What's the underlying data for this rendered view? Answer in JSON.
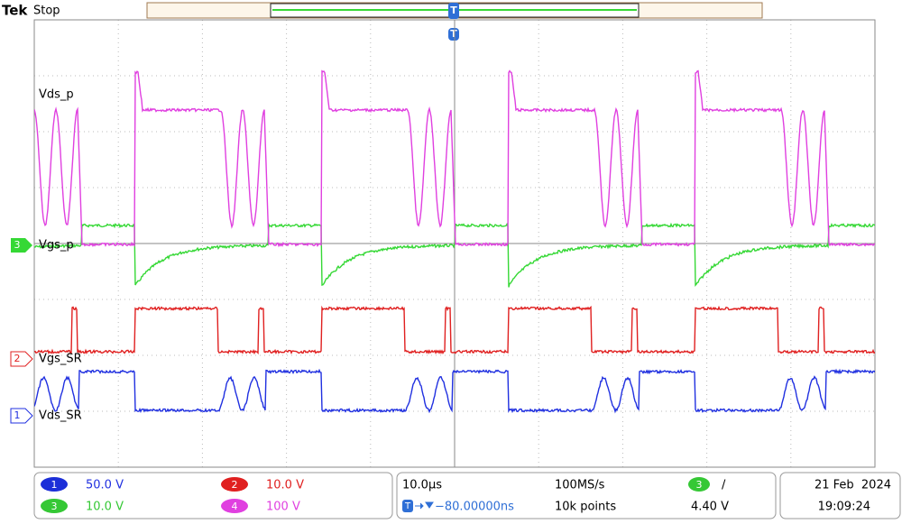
{
  "header": {
    "brand": "Tek",
    "status": "Stop",
    "trigger_marker": "T"
  },
  "traces": [
    {
      "label": "Vds_p"
    },
    {
      "label": "Vgs_p",
      "marker": "3"
    },
    {
      "label": "Vgs_SR",
      "marker": "2"
    },
    {
      "label": "Vds_SR",
      "marker": "1"
    }
  ],
  "channels": [
    {
      "badge": "1",
      "scale": "50.0 V"
    },
    {
      "badge": "2",
      "scale": "10.0 V"
    },
    {
      "badge": "3",
      "scale": "10.0 V"
    },
    {
      "badge": "4",
      "scale": "100 V"
    }
  ],
  "horizontal": {
    "scale": "10.0µs",
    "sample_rate": "100MS/s",
    "delay": "−80.00000ns",
    "record_length": "10k points"
  },
  "trigger": {
    "badge": "3",
    "slope": "/",
    "level": "4.40 V"
  },
  "datetime": {
    "date": "21 Feb  2024",
    "time": "19:09:24"
  }
}
